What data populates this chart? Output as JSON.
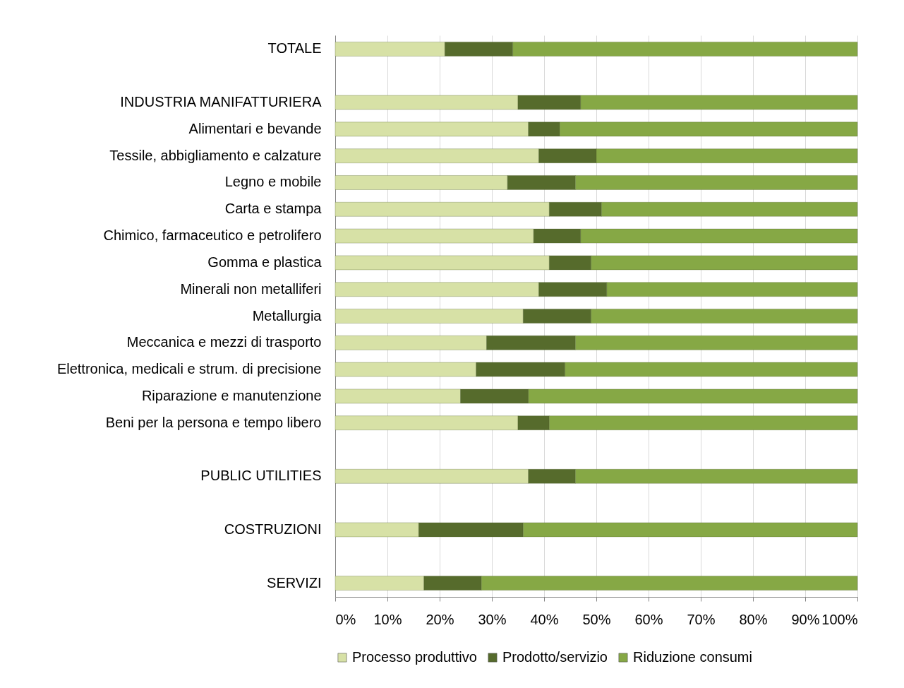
{
  "chart_data": {
    "type": "bar",
    "orientation": "horizontal",
    "stacked": true,
    "categories": [
      "TOTALE",
      null,
      "INDUSTRIA MANIFATTURIERA",
      "Alimentari e bevande",
      "Tessile, abbigliamento e calzature",
      "Legno e mobile",
      "Carta e stampa",
      "Chimico, farmaceutico e petrolifero",
      "Gomma e plastica",
      "Minerali non metalliferi",
      "Metallurgia",
      "Meccanica e mezzi di trasporto",
      "Elettronica, medicali e strum. di precisione",
      "Riparazione e manutenzione",
      "Beni per la persona e tempo libero",
      null,
      "PUBLIC UTILITIES",
      null,
      "COSTRUZIONI",
      null,
      "SERVIZI"
    ],
    "series": [
      {
        "name": "Processo produttivo",
        "color": "#d7e1a6",
        "values": [
          21,
          null,
          35,
          37,
          39,
          33,
          41,
          38,
          41,
          39,
          36,
          29,
          27,
          24,
          35,
          null,
          37,
          null,
          16,
          null,
          17
        ]
      },
      {
        "name": "Prodotto/servizio",
        "color": "#566b2c",
        "values": [
          13,
          null,
          12,
          6,
          11,
          13,
          10,
          9,
          8,
          13,
          13,
          17,
          17,
          13,
          6,
          null,
          9,
          null,
          20,
          null,
          11
        ]
      },
      {
        "name": "Riduzione consumi",
        "color": "#86a845",
        "values": [
          66,
          null,
          53,
          57,
          50,
          54,
          49,
          53,
          51,
          48,
          51,
          54,
          56,
          63,
          59,
          null,
          54,
          null,
          64,
          null,
          72
        ]
      }
    ],
    "xlim": [
      0,
      100
    ],
    "xticks": [
      {
        "value": 0,
        "label": "0%"
      },
      {
        "value": 10,
        "label": "10%"
      },
      {
        "value": 20,
        "label": "20%"
      },
      {
        "value": 30,
        "label": "30%"
      },
      {
        "value": 40,
        "label": "40%"
      },
      {
        "value": 50,
        "label": "50%"
      },
      {
        "value": 60,
        "label": "60%"
      },
      {
        "value": 70,
        "label": "70%"
      },
      {
        "value": 80,
        "label": "80%"
      },
      {
        "value": 90,
        "label": "90%"
      },
      {
        "value": 100,
        "label": "100%"
      }
    ],
    "grid": "x",
    "legend": "bottom"
  }
}
